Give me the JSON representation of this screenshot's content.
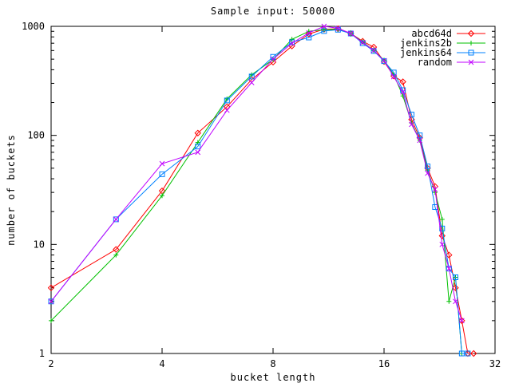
{
  "chart_data": {
    "type": "line",
    "title": "Sample input: 50000",
    "xlabel": "bucket length",
    "ylabel": "number of buckets",
    "x_scale": "log2",
    "y_scale": "log10",
    "xlim": [
      2,
      32
    ],
    "ylim": [
      1,
      1000
    ],
    "x_ticks": [
      2,
      4,
      8,
      16,
      32
    ],
    "y_ticks": [
      1,
      10,
      100,
      1000
    ],
    "grid": "off",
    "legend_position": "inside-top-right",
    "background_color": "#ffffff",
    "border_color": "#000000",
    "series": [
      {
        "name": "abcd64d",
        "color": "#ff0000",
        "marker": "diamond",
        "x": [
          2,
          3,
          4,
          5,
          6,
          7,
          8,
          9,
          10,
          11,
          12,
          13,
          14,
          15,
          16,
          17,
          18,
          19,
          20,
          21,
          22,
          23,
          24,
          25,
          26,
          27,
          28
        ],
        "y": [
          4,
          9,
          31,
          105,
          183,
          325,
          470,
          660,
          850,
          940,
          950,
          860,
          730,
          645,
          475,
          350,
          310,
          140,
          95,
          50,
          34,
          12,
          8,
          4,
          2,
          1,
          1
        ]
      },
      {
        "name": "jenkins2b",
        "color": "#00c000",
        "marker": "plus",
        "x": [
          2,
          3,
          4,
          5,
          6,
          7,
          8,
          9,
          10,
          11,
          12,
          13,
          14,
          15,
          16,
          17,
          18,
          19,
          20,
          21,
          22,
          23,
          24,
          25,
          26
        ],
        "y": [
          2,
          8,
          28,
          86,
          216,
          360,
          495,
          760,
          900,
          930,
          940,
          860,
          720,
          600,
          490,
          360,
          230,
          130,
          90,
          48,
          30,
          17,
          3,
          5,
          1
        ]
      },
      {
        "name": "jenkins64",
        "color": "#0080ff",
        "marker": "square",
        "x": [
          2,
          3,
          4,
          5,
          6,
          7,
          8,
          9,
          10,
          11,
          12,
          13,
          14,
          15,
          16,
          17,
          18,
          19,
          20,
          21,
          22,
          23,
          24,
          25,
          26,
          27
        ],
        "y": [
          3,
          17,
          44,
          79,
          209,
          347,
          525,
          714,
          790,
          905,
          930,
          860,
          700,
          595,
          480,
          377,
          260,
          155,
          100,
          52,
          22,
          14,
          6,
          5,
          1,
          1
        ]
      },
      {
        "name": "random",
        "color": "#c000ff",
        "marker": "x",
        "x": [
          2,
          3,
          4,
          5,
          6,
          7,
          8,
          9,
          10,
          11,
          12,
          13,
          14,
          15,
          16,
          17,
          18,
          19,
          20,
          21,
          22,
          23,
          24,
          25,
          26
        ],
        "y": [
          3,
          17,
          55,
          70,
          170,
          305,
          500,
          700,
          870,
          1000,
          960,
          860,
          710,
          600,
          485,
          345,
          250,
          126,
          90,
          45,
          32,
          10,
          6,
          3,
          2
        ]
      }
    ]
  }
}
